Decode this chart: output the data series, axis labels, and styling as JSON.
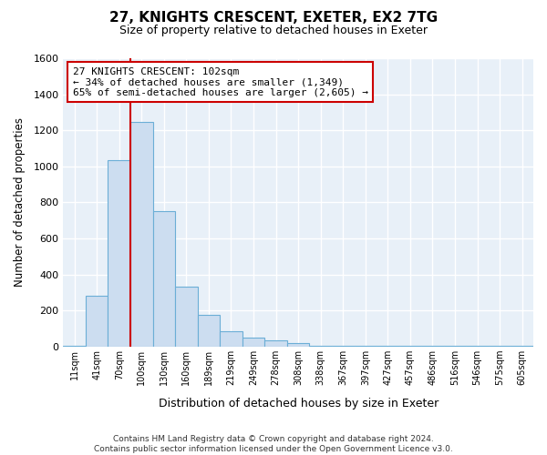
{
  "title": "27, KNIGHTS CRESCENT, EXETER, EX2 7TG",
  "subtitle": "Size of property relative to detached houses in Exeter",
  "xlabel": "Distribution of detached houses by size in Exeter",
  "ylabel": "Number of detached properties",
  "footer_line1": "Contains HM Land Registry data © Crown copyright and database right 2024.",
  "footer_line2": "Contains public sector information licensed under the Open Government Licence v3.0.",
  "bin_labels": [
    "11sqm",
    "41sqm",
    "70sqm",
    "100sqm",
    "130sqm",
    "160sqm",
    "189sqm",
    "219sqm",
    "249sqm",
    "278sqm",
    "308sqm",
    "338sqm",
    "367sqm",
    "397sqm",
    "427sqm",
    "457sqm",
    "486sqm",
    "516sqm",
    "546sqm",
    "575sqm",
    "605sqm"
  ],
  "bar_heights": [
    5,
    280,
    1035,
    1245,
    750,
    330,
    175,
    85,
    50,
    35,
    20,
    5,
    5,
    5,
    5,
    5,
    5,
    5,
    5,
    5,
    5
  ],
  "bar_color": "#ccddf0",
  "bar_edge_color": "#6baed6",
  "vline_x_bin": 3,
  "vline_color": "#cc0000",
  "annotation_text": "27 KNIGHTS CRESCENT: 102sqm\n← 34% of detached houses are smaller (1,349)\n65% of semi-detached houses are larger (2,605) →",
  "annotation_box_edge": "#cc0000",
  "ylim": [
    0,
    1600
  ],
  "yticks": [
    0,
    200,
    400,
    600,
    800,
    1000,
    1200,
    1400,
    1600
  ],
  "ax_background": "#e8f0f8",
  "background_color": "#ffffff",
  "grid_color": "#ffffff"
}
